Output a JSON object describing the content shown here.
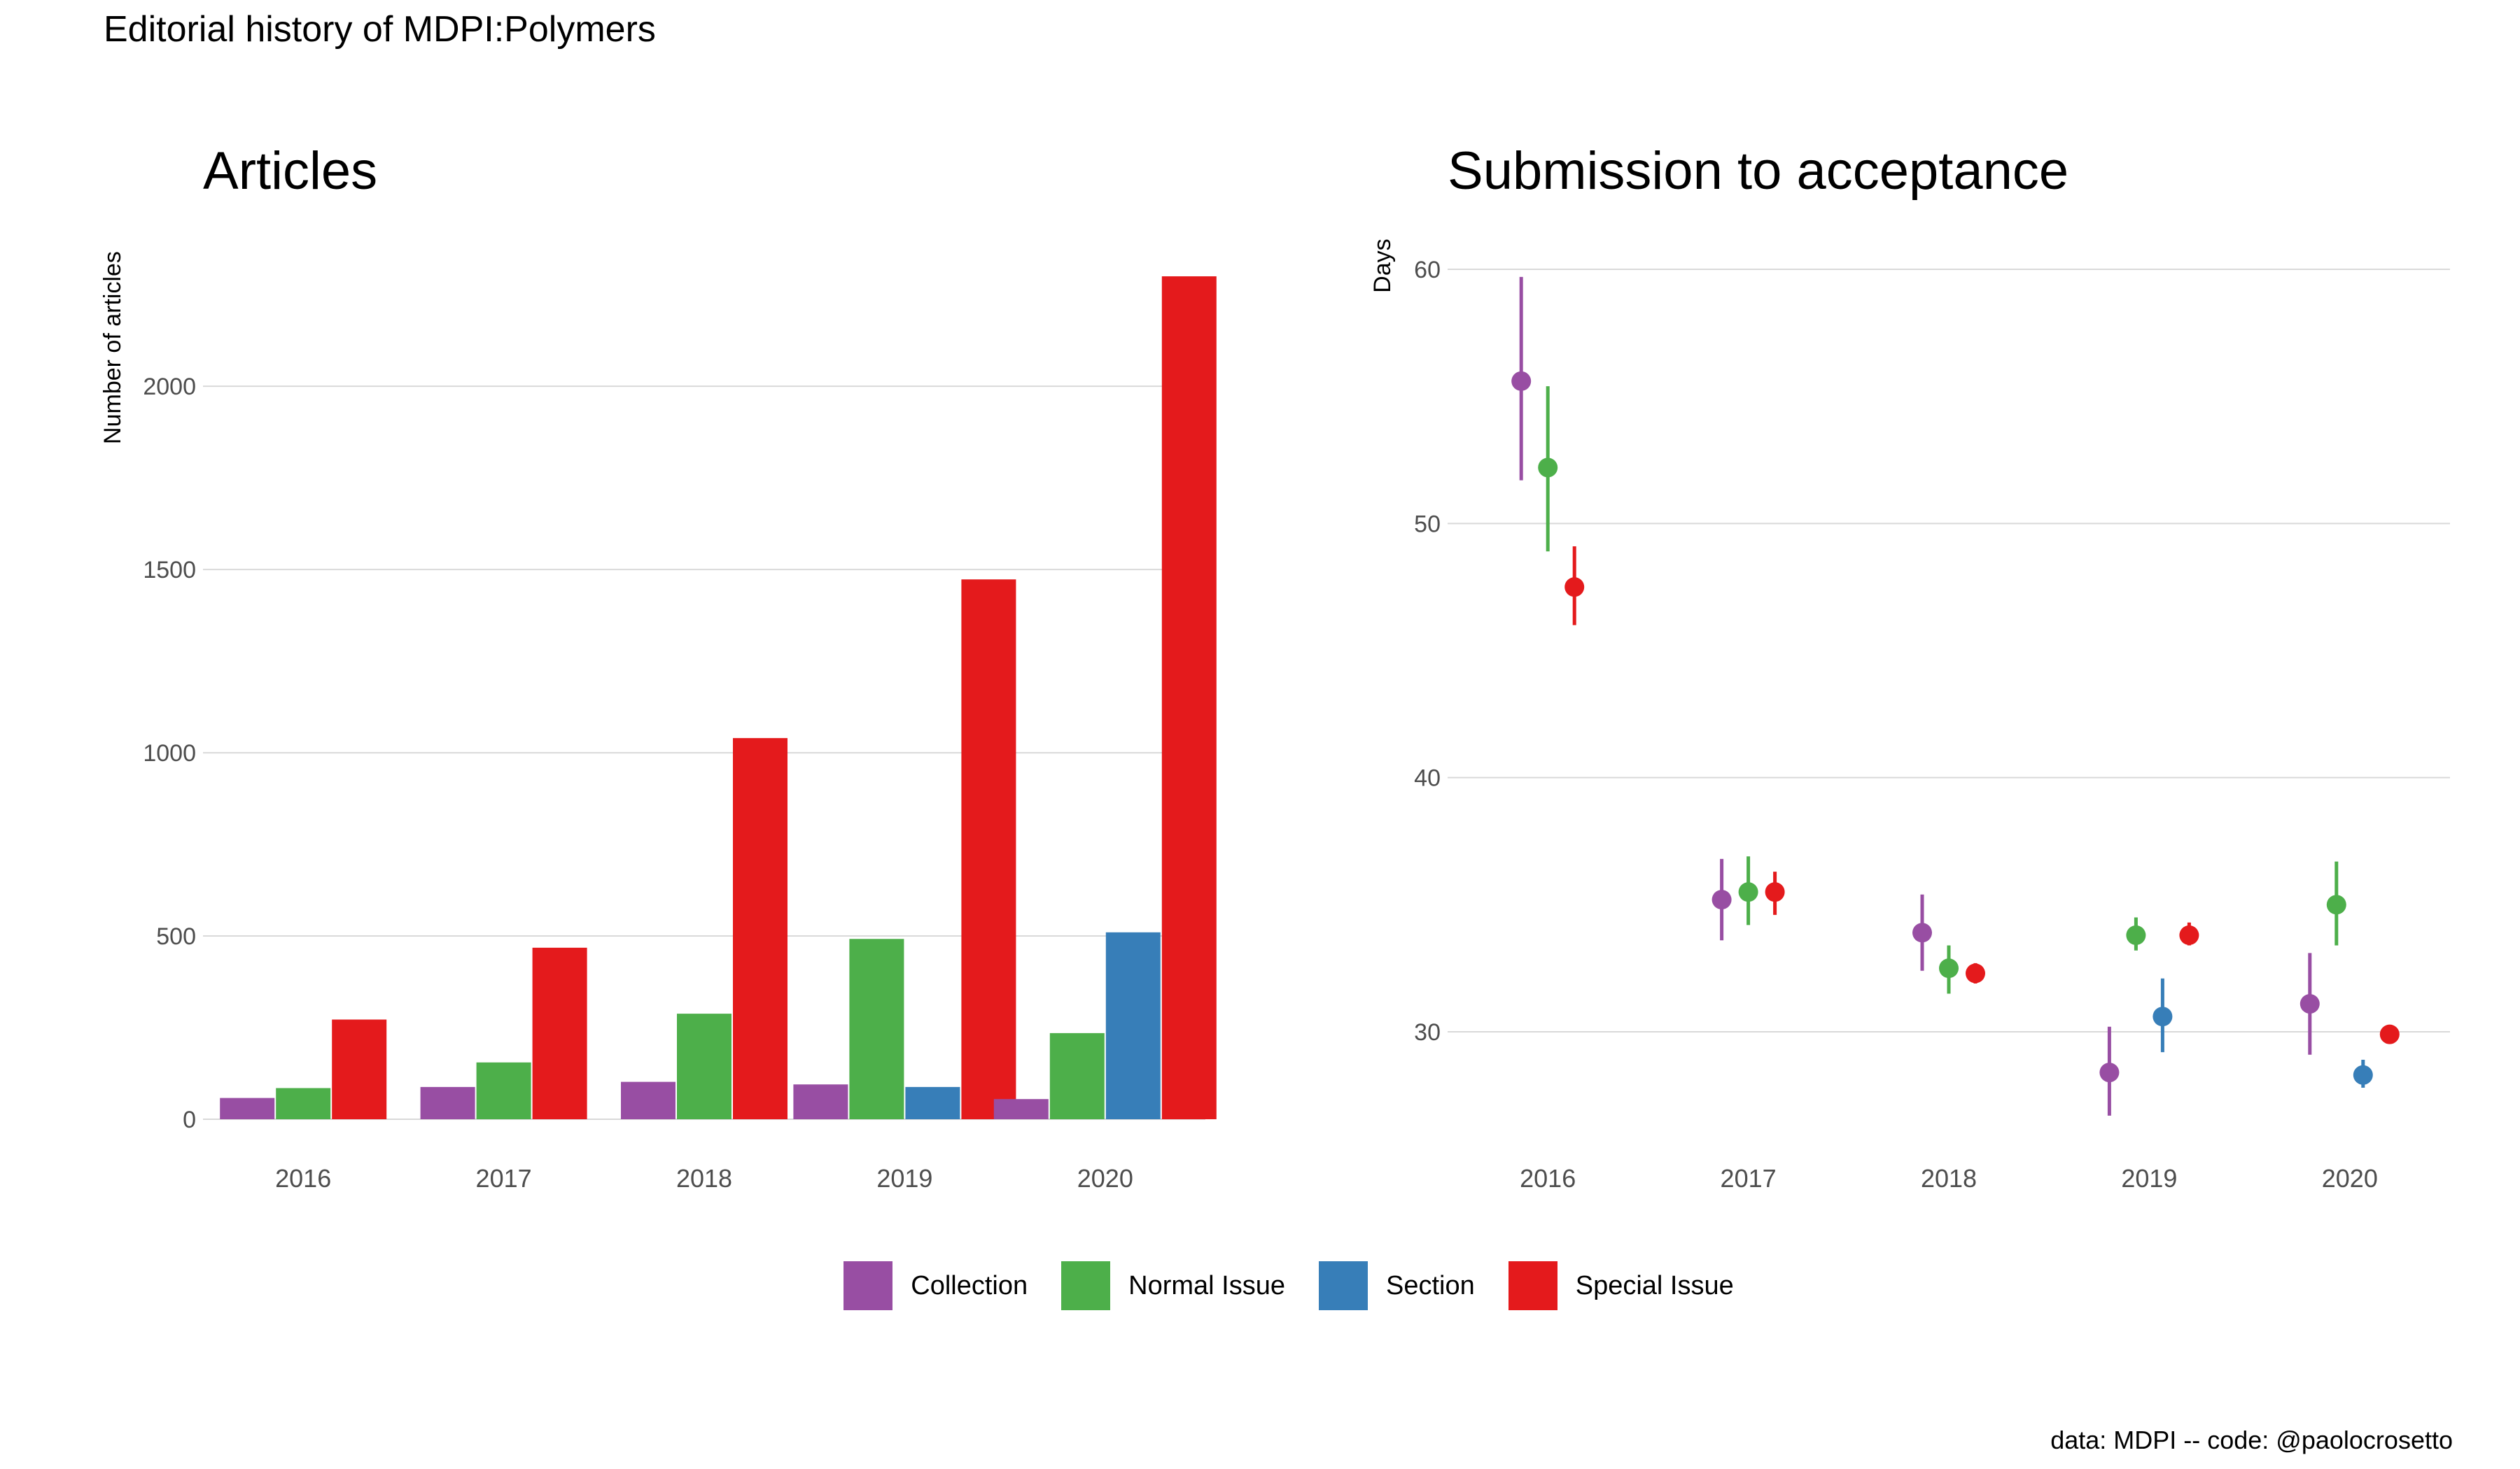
{
  "page_title": "Editorial history of MDPI:Polymers",
  "caption": "data: MDPI -- code: @paolocrosetto",
  "colors": {
    "Collection": "#984EA3",
    "Normal Issue": "#4DAF4A",
    "Section": "#377EB8",
    "Special Issue": "#E41A1C",
    "grid": "#d9d9d9",
    "tick_text": "#4d4d4d"
  },
  "legend": {
    "items": [
      {
        "label": "Collection",
        "color": "#984EA3"
      },
      {
        "label": "Normal Issue",
        "color": "#4DAF4A"
      },
      {
        "label": "Section",
        "color": "#377EB8"
      },
      {
        "label": "Special Issue",
        "color": "#E41A1C"
      }
    ]
  },
  "chart_data": [
    {
      "type": "bar",
      "title": "Articles",
      "xlabel": "",
      "ylabel": "Number of articles",
      "categories": [
        "2016",
        "2017",
        "2018",
        "2019",
        "2020"
      ],
      "ylim": [
        0,
        2300
      ],
      "yticks": [
        0,
        500,
        1000,
        1500,
        2000
      ],
      "grid": true,
      "series": [
        {
          "name": "Collection",
          "values": [
            58,
            88,
            102,
            95,
            55
          ]
        },
        {
          "name": "Normal Issue",
          "values": [
            85,
            155,
            288,
            492,
            235
          ]
        },
        {
          "name": "Section",
          "values": [
            null,
            null,
            null,
            88,
            510
          ]
        },
        {
          "name": "Special Issue",
          "values": [
            272,
            468,
            1040,
            1473,
            2300
          ]
        }
      ]
    },
    {
      "type": "scatter",
      "subtype": "pointrange",
      "title": "Submission to acceptance",
      "xlabel": "",
      "ylabel": "Days",
      "categories": [
        "2016",
        "2017",
        "2018",
        "2019",
        "2020"
      ],
      "ylim": [
        25.5,
        61
      ],
      "yticks": [
        30,
        40,
        50,
        60
      ],
      "grid": true,
      "series": [
        {
          "name": "Collection",
          "values": [
            55.6,
            35.2,
            33.9,
            28.4,
            31.1
          ],
          "low": [
            51.7,
            33.6,
            32.4,
            26.7,
            29.1
          ],
          "high": [
            59.7,
            36.8,
            35.4,
            30.2,
            33.1
          ]
        },
        {
          "name": "Normal Issue",
          "values": [
            52.2,
            35.5,
            32.5,
            33.8,
            35.0
          ],
          "low": [
            48.9,
            34.2,
            31.5,
            33.2,
            33.4
          ],
          "high": [
            55.4,
            36.9,
            33.4,
            34.5,
            36.7
          ]
        },
        {
          "name": "Section",
          "values": [
            null,
            null,
            null,
            30.6,
            28.3
          ],
          "low": [
            null,
            null,
            null,
            29.2,
            27.8
          ],
          "high": [
            null,
            null,
            null,
            32.1,
            28.9
          ]
        },
        {
          "name": "Special Issue",
          "values": [
            47.5,
            35.5,
            32.3,
            33.8,
            29.9
          ],
          "low": [
            46.0,
            34.6,
            31.9,
            33.4,
            29.6
          ],
          "high": [
            49.1,
            36.3,
            32.7,
            34.3,
            30.2
          ]
        }
      ]
    }
  ]
}
